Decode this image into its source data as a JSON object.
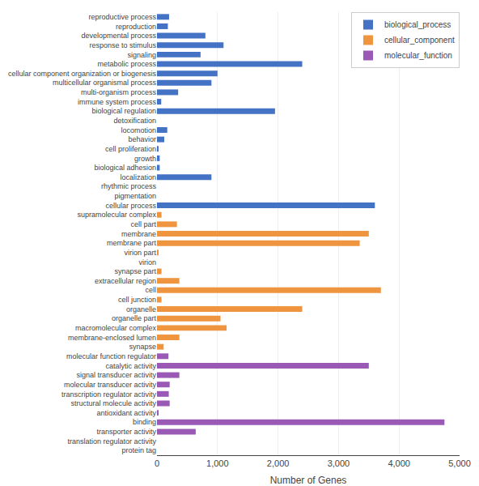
{
  "chart_data": {
    "type": "bar",
    "orientation": "horizontal",
    "categories": [
      "reproductive process",
      "reproduction",
      "developmental process",
      "response to stimulus",
      "signaling",
      "metabolic process",
      "cellular component organization or biogenesis",
      "multicellular organismal process",
      "multi-organism process",
      "immune system process",
      "biological regulation",
      "detoxification",
      "locomotion",
      "behavior",
      "cell proliferation",
      "growth",
      "biological adhesion",
      "localization",
      "rhythmic process",
      "pigmentation",
      "cellular process",
      "supramolecular complex",
      "cell part",
      "membrane",
      "membrane part",
      "virion part",
      "virion",
      "synapse part",
      "extracellular region",
      "cell",
      "cell junction",
      "organelle",
      "organelle part",
      "macromolecular complex",
      "membrane-enclosed lumen",
      "synapse",
      "molecular function regulator",
      "catalytic activity",
      "signal transducer activity",
      "molecular transducer activity",
      "transcription regulator activity",
      "structural molecule activity",
      "antioxidant activity",
      "binding",
      "transporter activity",
      "translation regulator activity",
      "protein tag"
    ],
    "series": [
      {
        "name": "biological_process",
        "color": "#4472c4",
        "values": [
          200,
          180,
          800,
          1100,
          720,
          2400,
          1000,
          900,
          350,
          70,
          1950,
          0,
          170,
          120,
          15,
          45,
          45,
          900,
          0,
          0,
          3600,
          null,
          null,
          null,
          null,
          null,
          null,
          null,
          null,
          null,
          null,
          null,
          null,
          null,
          null,
          null,
          null,
          null,
          null,
          null,
          null,
          null,
          null,
          null,
          null,
          null,
          null
        ]
      },
      {
        "name": "cellular_component",
        "color": "#f0953f",
        "values": [
          null,
          null,
          null,
          null,
          null,
          null,
          null,
          null,
          null,
          null,
          null,
          null,
          null,
          null,
          null,
          null,
          null,
          null,
          null,
          null,
          null,
          75,
          330,
          3500,
          3350,
          15,
          0,
          75,
          370,
          3700,
          75,
          2400,
          1050,
          1150,
          370,
          110,
          null,
          null,
          null,
          null,
          null,
          null,
          null,
          null,
          null,
          null,
          null
        ]
      },
      {
        "name": "molecular_function",
        "color": "#9b59b6",
        "values": [
          null,
          null,
          null,
          null,
          null,
          null,
          null,
          null,
          null,
          null,
          null,
          null,
          null,
          null,
          null,
          null,
          null,
          null,
          null,
          null,
          null,
          null,
          null,
          null,
          null,
          null,
          null,
          null,
          null,
          null,
          null,
          null,
          null,
          null,
          null,
          null,
          190,
          3500,
          370,
          210,
          195,
          210,
          15,
          4750,
          640,
          0,
          0
        ]
      }
    ],
    "xlabel": "Number of Genes",
    "xlim": [
      0,
      5000
    ],
    "xticks": [
      0,
      {
        "value": 1000,
        "label": "1,000"
      },
      {
        "value": 2000,
        "label": "2,000"
      },
      {
        "value": 3000,
        "label": "3,000"
      },
      {
        "value": 4000,
        "label": "4,000"
      },
      {
        "value": 5000,
        "label": "5,000"
      }
    ],
    "grid": true,
    "legend": "upper right"
  }
}
